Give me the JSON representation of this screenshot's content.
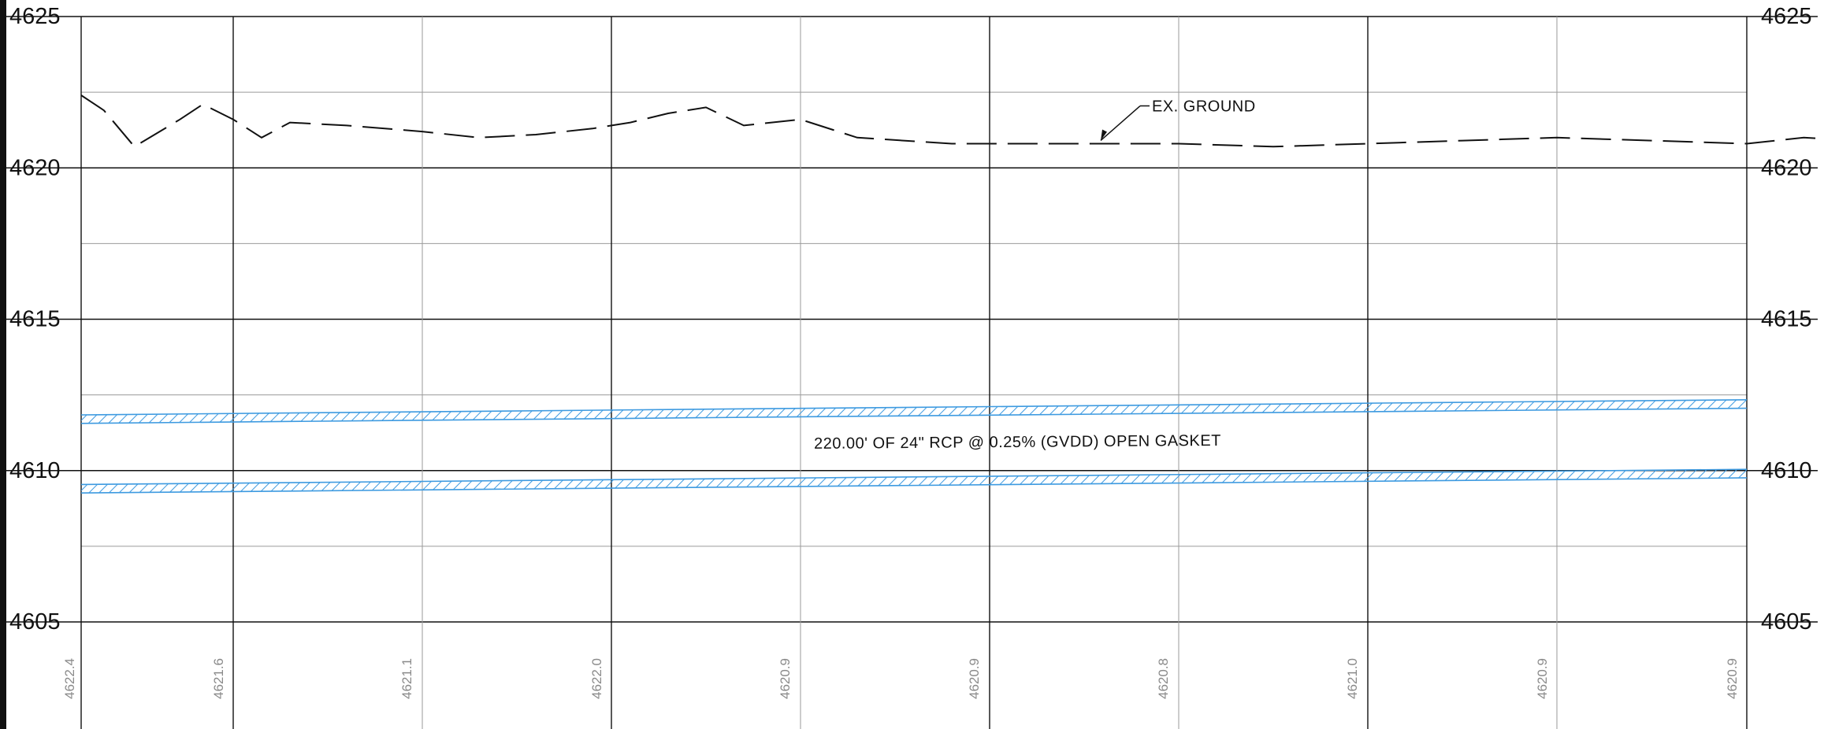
{
  "profile": {
    "y_axis": {
      "ticks": [
        4625,
        4620,
        4615,
        4610,
        4605
      ],
      "range": [
        4605,
        4625
      ],
      "grid_step": 2.5
    },
    "stations": {
      "count": 10,
      "ground_elevations": [
        "4622.4",
        "4621.6",
        "4621.1",
        "4622.0",
        "4620.9",
        "4620.9",
        "4620.8",
        "4621.0",
        "4620.9",
        "4620.9"
      ]
    },
    "existing_ground": {
      "label": "EX. GROUND",
      "points": [
        [
          0,
          4622.4
        ],
        [
          0.15,
          4621.9
        ],
        [
          0.35,
          4620.7
        ],
        [
          0.65,
          4621.6
        ],
        [
          0.8,
          4622.1
        ],
        [
          1.0,
          4621.6
        ],
        [
          1.15,
          4621.0
        ],
        [
          1.3,
          4621.5
        ],
        [
          1.6,
          4621.4
        ],
        [
          2.0,
          4621.2
        ],
        [
          2.3,
          4621.0
        ],
        [
          2.6,
          4621.1
        ],
        [
          2.9,
          4621.3
        ],
        [
          3.1,
          4621.5
        ],
        [
          3.3,
          4621.8
        ],
        [
          3.5,
          4622.0
        ],
        [
          3.7,
          4621.4
        ],
        [
          4.0,
          4621.6
        ],
        [
          4.3,
          4621.0
        ],
        [
          4.8,
          4620.8
        ],
        [
          5.2,
          4620.8
        ],
        [
          5.6,
          4620.8
        ],
        [
          6.0,
          4620.8
        ],
        [
          6.5,
          4620.7
        ],
        [
          7.0,
          4620.8
        ],
        [
          7.5,
          4620.9
        ],
        [
          8.0,
          4621.0
        ],
        [
          8.5,
          4620.9
        ],
        [
          9.0,
          4620.8
        ],
        [
          9.3,
          4621.0
        ],
        [
          9.6,
          4620.9
        ],
        [
          9.99,
          4620.9
        ]
      ],
      "callout_point": [
        5.6,
        4620.8
      ],
      "callout_elbow": [
        5.8,
        4622.1
      ]
    },
    "pipe": {
      "label": "220.00' OF 24\" RCP @ 0.25% (GVDD) OPEN GASKET",
      "top_elevation": [
        4611.7,
        4612.2
      ],
      "bottom_elevation": [
        4609.4,
        4609.9
      ],
      "band_thickness": 0.28,
      "label_anchor": [
        6.0,
        4611.0
      ]
    },
    "colors": {
      "grid_major": "#111111",
      "grid_minor": "#9a9a9a",
      "pipe": "#3d9ae0",
      "ground": "#111111",
      "station_text": "#8a8a8a"
    }
  }
}
